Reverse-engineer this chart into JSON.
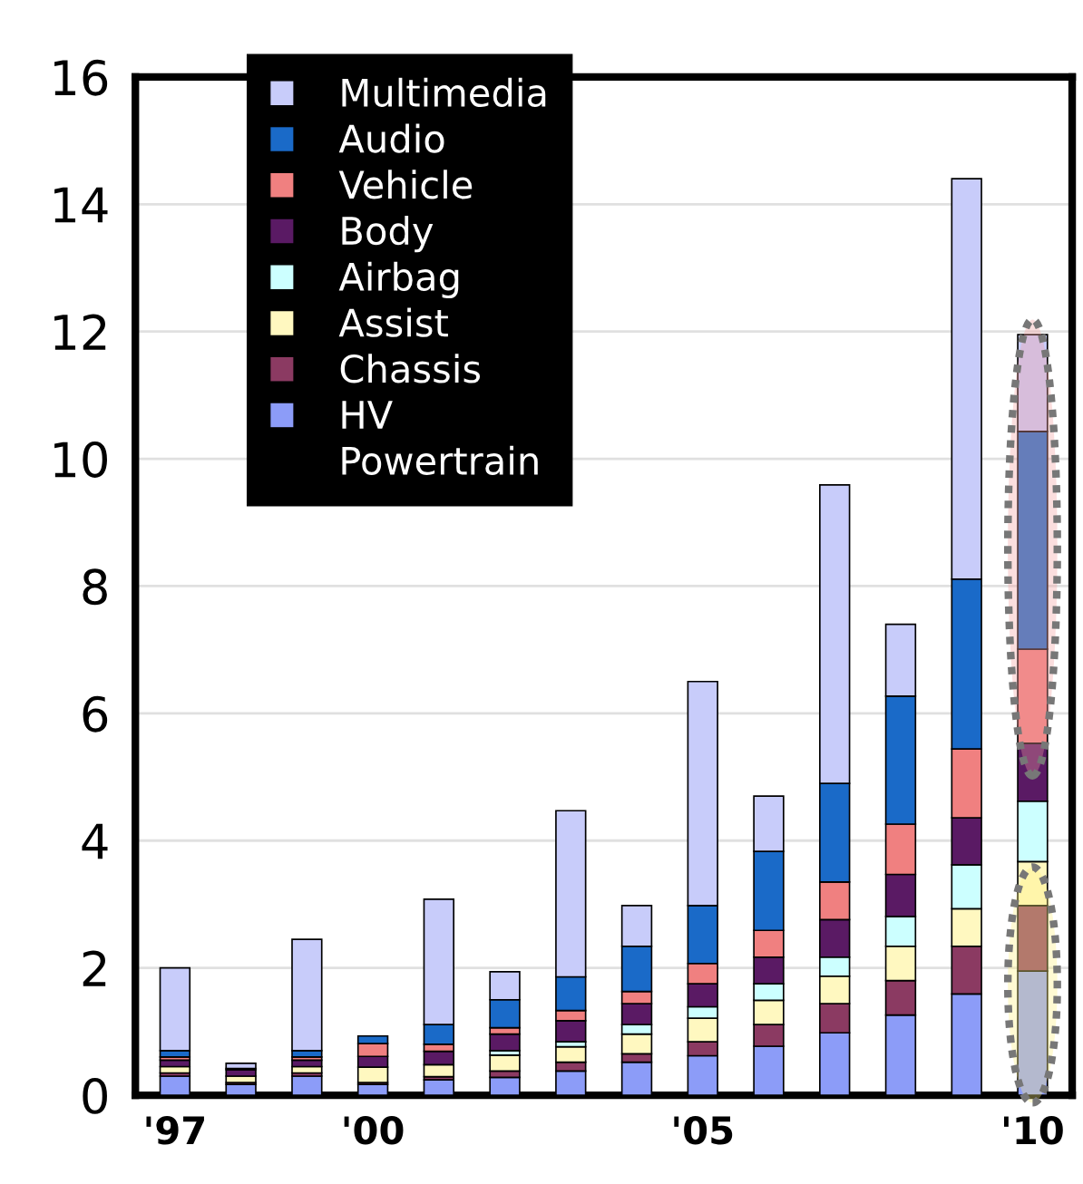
{
  "chart_data": {
    "type": "bar",
    "stacked": true,
    "categories": [
      "'97",
      null,
      null,
      "'00",
      null,
      null,
      null,
      null,
      "'05",
      null,
      null,
      null,
      null,
      "'10"
    ],
    "series": [
      {
        "name": "HV",
        "color": "#8c9cf8",
        "values": [
          0.3,
          0.17,
          0.3,
          0.17,
          0.24,
          0.28,
          0.38,
          0.52,
          0.62,
          0.77,
          0.98,
          1.26,
          1.59,
          1.95
        ]
      },
      {
        "name": "Chassis",
        "color": "#8b3a62",
        "values": [
          0.05,
          0.03,
          0.05,
          0.03,
          0.05,
          0.1,
          0.14,
          0.13,
          0.22,
          0.34,
          0.46,
          0.54,
          0.75,
          1.03
        ]
      },
      {
        "name": "Assist",
        "color": "#fff8c0",
        "values": [
          0.1,
          0.1,
          0.1,
          0.24,
          0.19,
          0.25,
          0.24,
          0.31,
          0.37,
          0.38,
          0.43,
          0.54,
          0.59,
          0.69
        ]
      },
      {
        "name": "Airbag",
        "color": "#ccffff",
        "values": [
          null,
          null,
          null,
          null,
          null,
          0.07,
          0.08,
          0.15,
          0.18,
          0.26,
          0.3,
          0.47,
          0.69,
          0.95
        ]
      },
      {
        "name": "Body",
        "color": "#5a1a64",
        "values": [
          0.1,
          0.1,
          0.1,
          0.17,
          0.21,
          0.26,
          0.33,
          0.33,
          0.36,
          0.42,
          0.59,
          0.66,
          0.74,
          0.91
        ]
      },
      {
        "name": "Vehicle",
        "color": "#f08080",
        "values": [
          0.05,
          null,
          0.05,
          0.2,
          0.11,
          0.1,
          0.16,
          0.19,
          0.32,
          0.42,
          0.59,
          0.79,
          1.08,
          1.48
        ]
      },
      {
        "name": "Audio",
        "color": "#1a6ac8",
        "values": [
          0.1,
          0.02,
          0.1,
          0.12,
          0.31,
          0.44,
          0.53,
          0.71,
          0.91,
          1.24,
          1.55,
          2.01,
          2.67,
          3.42
        ]
      },
      {
        "name": "Multimedia",
        "color": "#c8ccfa",
        "values": [
          1.3,
          0.08,
          1.75,
          null,
          1.97,
          0.44,
          2.61,
          0.64,
          3.52,
          0.87,
          4.69,
          1.13,
          6.29,
          1.52
        ]
      },
      {
        "name": "Powertrain",
        "values": [
          null,
          null,
          null,
          null,
          null,
          null,
          null,
          null,
          null,
          null,
          null,
          null,
          null,
          null
        ]
      }
    ],
    "ylim": [
      0,
      16
    ],
    "yticks": [
      0,
      2,
      4,
      6,
      8,
      10,
      12,
      14,
      16
    ],
    "grid": "y",
    "legend": "top left"
  }
}
